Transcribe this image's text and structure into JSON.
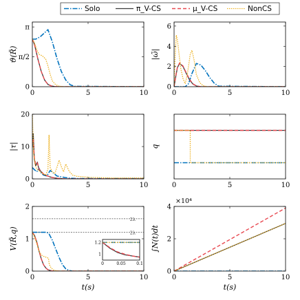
{
  "colors": {
    "solo": "#0072BD",
    "pi_cs": "#3a3a3a",
    "mu_cs": "#E8474F",
    "noncs": "#EDB120",
    "guide": "#888888"
  },
  "legend": [
    {
      "key": "solo",
      "label": "Solo",
      "dash": "7,2,1.5,2"
    },
    {
      "key": "pi_cs",
      "label": "π_V-CS",
      "dash": ""
    },
    {
      "key": "mu_cs",
      "label": "μ_V-CS",
      "dash": "5,3"
    },
    {
      "key": "noncs",
      "label": "NonCS",
      "dash": "1.5,1.5"
    }
  ],
  "chart_data": [
    {
      "id": "theta",
      "type": "line",
      "ylabel": "ϑ(R̃)",
      "xlim": [
        0,
        10
      ],
      "ylim": [
        0,
        3.4
      ],
      "xticks": [
        0,
        5,
        10
      ],
      "xticklabels": [
        "0",
        "5",
        "10"
      ],
      "yticks": [
        0,
        1.5708,
        3.1416
      ],
      "yticklabels": [
        "0",
        "π/2",
        "π"
      ],
      "series": [
        {
          "key": "solo",
          "x": [
            0,
            0.3,
            0.7,
            1.0,
            1.4,
            1.8,
            2.2,
            2.6,
            3.0,
            3.4,
            3.8,
            10
          ],
          "y": [
            2.5,
            2.5,
            2.62,
            2.78,
            3.0,
            2.35,
            1.5,
            0.8,
            0.35,
            0.1,
            0.02,
            0
          ]
        },
        {
          "key": "pi_cs",
          "x": [
            0,
            0.2,
            0.5,
            0.8,
            1.1,
            1.4,
            1.7,
            2.0,
            2.4,
            10
          ],
          "y": [
            2.5,
            2.2,
            1.45,
            0.8,
            0.35,
            0.12,
            0.04,
            0.01,
            0,
            0
          ]
        },
        {
          "key": "mu_cs",
          "x": [
            0,
            0.2,
            0.5,
            0.8,
            1.1,
            1.4,
            1.7,
            2.0,
            2.4,
            10
          ],
          "y": [
            2.5,
            2.2,
            1.45,
            0.8,
            0.35,
            0.12,
            0.04,
            0.01,
            0,
            0
          ]
        },
        {
          "key": "noncs",
          "x": [
            0,
            0.2,
            0.4,
            0.6,
            0.9,
            1.2,
            1.4,
            1.6,
            1.8,
            2.1,
            2.4,
            2.8,
            10
          ],
          "y": [
            2.5,
            2.3,
            1.95,
            1.7,
            1.62,
            1.45,
            1.1,
            0.65,
            0.3,
            0.1,
            0.03,
            0,
            0
          ]
        }
      ]
    },
    {
      "id": "omega",
      "type": "line",
      "ylabel": "|ω̃|",
      "xlim": [
        0,
        10
      ],
      "ylim": [
        0,
        6.4
      ],
      "xticks": [
        0,
        5,
        10
      ],
      "xticklabels": [
        "0",
        "5",
        "10"
      ],
      "yticks": [
        0,
        2,
        4,
        6
      ],
      "yticklabels": [
        "0",
        "2",
        "4",
        "6"
      ],
      "series": [
        {
          "key": "solo",
          "x": [
            0,
            1.0,
            1.3,
            1.6,
            2.0,
            2.4,
            2.8,
            3.2,
            3.6,
            4.0,
            10
          ],
          "y": [
            0,
            0,
            0.3,
            1.3,
            2.3,
            2.15,
            1.6,
            0.9,
            0.35,
            0.05,
            0
          ]
        },
        {
          "key": "pi_cs",
          "x": [
            0,
            0.15,
            0.3,
            0.5,
            0.8,
            1.1,
            1.4,
            1.7,
            2.0,
            2.4,
            10
          ],
          "y": [
            0,
            1.0,
            1.9,
            2.3,
            2.0,
            1.3,
            0.65,
            0.25,
            0.07,
            0,
            0
          ]
        },
        {
          "key": "mu_cs",
          "x": [
            0,
            0.15,
            0.3,
            0.5,
            0.8,
            1.1,
            1.4,
            1.7,
            2.0,
            2.4,
            10
          ],
          "y": [
            0,
            1.05,
            1.95,
            2.35,
            2.05,
            1.35,
            0.7,
            0.28,
            0.08,
            0,
            0
          ]
        },
        {
          "key": "noncs",
          "x": [
            0,
            0.1,
            0.2,
            0.3,
            0.45,
            0.6,
            0.8,
            1.0,
            1.2,
            1.45,
            1.6,
            1.8,
            2.0,
            2.3,
            2.6,
            3.0,
            10
          ],
          "y": [
            0,
            3.2,
            5.1,
            4.6,
            3.2,
            1.8,
            0.8,
            0.3,
            1.3,
            3.2,
            3.6,
            2.6,
            1.2,
            0.4,
            0.1,
            0,
            0
          ]
        }
      ]
    },
    {
      "id": "tau",
      "type": "line",
      "ylabel": "|τ|",
      "xlim": [
        0,
        10
      ],
      "ylim": [
        0,
        20
      ],
      "xticks": [
        0,
        5,
        10
      ],
      "xticklabels": [
        "0",
        "5",
        "10"
      ],
      "yticks": [
        0,
        10,
        20
      ],
      "yticklabels": [
        "0",
        "10",
        "20"
      ],
      "series": [
        {
          "key": "solo",
          "x": [
            0,
            0.2,
            0.4,
            0.6,
            0.8,
            1.0,
            1.3,
            1.6,
            1.9,
            2.2,
            2.6,
            3.0,
            3.5,
            4.0,
            10
          ],
          "y": [
            3.5,
            2.8,
            2.2,
            3.3,
            1.8,
            1.2,
            0.9,
            2.6,
            1.8,
            0.9,
            0.6,
            0.4,
            0.2,
            0.1,
            0.1
          ]
        },
        {
          "key": "pi_cs",
          "x": [
            0,
            0.08,
            0.18,
            0.3,
            0.45,
            0.6,
            0.8,
            1.0,
            1.3,
            1.6,
            2.0,
            2.5,
            3.0,
            10
          ],
          "y": [
            10,
            14,
            6,
            4,
            5.2,
            2.8,
            2.2,
            1.4,
            1.0,
            0.6,
            0.3,
            0.1,
            0,
            0
          ]
        },
        {
          "key": "mu_cs",
          "x": [
            0,
            0.08,
            0.18,
            0.3,
            0.45,
            0.6,
            0.8,
            1.0,
            1.3,
            1.6,
            2.0,
            2.5,
            3.0,
            10
          ],
          "y": [
            11,
            12.5,
            6.5,
            4.5,
            5.0,
            3.0,
            2.4,
            1.5,
            1.0,
            0.6,
            0.3,
            0.1,
            0,
            0
          ]
        },
        {
          "key": "noncs",
          "x": [
            0,
            0.02,
            0.1,
            0.25,
            0.4,
            0.6,
            0.8,
            1.0,
            1.2,
            1.4,
            1.5,
            1.6,
            1.8,
            2.0,
            2.2,
            2.4,
            2.6,
            2.8,
            3.0,
            3.3,
            3.6,
            4.0,
            5.0,
            6.0,
            7.0,
            8.0,
            9.0,
            10
          ],
          "y": [
            20,
            18,
            8,
            4.5,
            3.0,
            2.5,
            2.0,
            1.5,
            1.2,
            3.0,
            13.5,
            3.5,
            2.2,
            1.6,
            3.5,
            5.8,
            3.8,
            2.2,
            4.6,
            2.4,
            1.2,
            0.8,
            0.5,
            0.4,
            0.3,
            0.3,
            0.3,
            0.3
          ]
        }
      ]
    },
    {
      "id": "q",
      "type": "line",
      "ylabel": "q",
      "xlim": [
        0,
        10
      ],
      "ylim": [
        0,
        4
      ],
      "xticks": [
        0,
        5,
        10
      ],
      "xticklabels": [
        "0",
        "5",
        "10"
      ],
      "yticks": [],
      "yticklabels": [],
      "series": [
        {
          "key": "solo",
          "x": [
            0,
            10
          ],
          "y": [
            1,
            1
          ]
        },
        {
          "key": "pi_cs",
          "x": [
            0,
            10
          ],
          "y": [
            3,
            3
          ]
        },
        {
          "key": "mu_cs",
          "x": [
            0,
            10
          ],
          "y": [
            3,
            3
          ]
        },
        {
          "key": "noncs",
          "x": [
            0,
            1.45,
            1.45,
            10
          ],
          "y": [
            3,
            3,
            1,
            1
          ]
        }
      ]
    },
    {
      "id": "V",
      "type": "line",
      "ylabel": "V(R̃,q)",
      "xlabel": "t(s)",
      "xlim": [
        0,
        10
      ],
      "ylim": [
        0,
        2
      ],
      "xticks": [
        0,
        5,
        10
      ],
      "xticklabels": [
        "0",
        "5",
        "10"
      ],
      "yticks": [
        0,
        1,
        2
      ],
      "yticklabels": [
        "0",
        "1",
        "2"
      ],
      "hlines": [
        {
          "y": 1.62,
          "label": "2λ"
        },
        {
          "y": 1.2,
          "label": "2λ"
        }
      ],
      "series": [
        {
          "key": "solo",
          "x": [
            0,
            1.3,
            1.5,
            1.8,
            2.1,
            2.4,
            2.7,
            3.0,
            3.3,
            3.6,
            10
          ],
          "y": [
            1.2,
            1.2,
            1.15,
            0.95,
            0.68,
            0.42,
            0.2,
            0.07,
            0.02,
            0,
            0
          ]
        },
        {
          "key": "pi_cs",
          "x": [
            0,
            0.2,
            0.4,
            0.6,
            0.8,
            1.0,
            1.2,
            1.4,
            1.7,
            2.0,
            10
          ],
          "y": [
            1.2,
            1.1,
            0.9,
            0.62,
            0.38,
            0.2,
            0.1,
            0.04,
            0.01,
            0,
            0
          ]
        },
        {
          "key": "mu_cs",
          "x": [
            0,
            0.2,
            0.4,
            0.6,
            0.8,
            1.0,
            1.2,
            1.4,
            1.7,
            2.0,
            10
          ],
          "y": [
            1.2,
            1.1,
            0.9,
            0.62,
            0.38,
            0.2,
            0.1,
            0.04,
            0.01,
            0,
            0
          ]
        },
        {
          "key": "noncs",
          "x": [
            0,
            0.2,
            0.4,
            0.6,
            0.8,
            1.0,
            1.3,
            1.45,
            1.5,
            1.6,
            1.8,
            2.0,
            2.2,
            2.5,
            10
          ],
          "y": [
            1.2,
            1.05,
            0.85,
            0.62,
            0.5,
            0.46,
            0.42,
            0.4,
            0.25,
            0.14,
            0.06,
            0.02,
            0.01,
            0,
            0
          ]
        }
      ],
      "inset": {
        "xlim": [
          0,
          0.1
        ],
        "ylim": [
          0.9,
          1.25
        ],
        "xticks": [
          0,
          0.05,
          0.1
        ],
        "xticklabels": [
          "0",
          "0.05",
          "0.1"
        ],
        "yticks": [
          1,
          1.2
        ],
        "yticklabels": [
          "1",
          "1.2"
        ],
        "series": [
          {
            "key": "solo",
            "x": [
              0,
              0.1
            ],
            "y": [
              1.2,
              1.2
            ]
          },
          {
            "key": "pi_cs",
            "x": [
              0,
              0.02,
              0.04,
              0.06,
              0.08,
              0.1
            ],
            "y": [
              1.2,
              1.1,
              1.03,
              0.99,
              0.97,
              0.95
            ]
          },
          {
            "key": "mu_cs",
            "x": [
              0,
              0.02,
              0.04,
              0.06,
              0.08,
              0.1
            ],
            "y": [
              1.2,
              1.11,
              1.04,
              1.0,
              0.97,
              0.95
            ]
          },
          {
            "key": "noncs",
            "x": [
              0,
              0.1
            ],
            "y": [
              1.2,
              1.2
            ]
          }
        ]
      }
    },
    {
      "id": "N",
      "type": "line",
      "ylabel": "∫N(t)dt",
      "xlabel": "t(s)",
      "exponent_label": "×10⁴",
      "xlim": [
        0,
        10
      ],
      "ylim": [
        0,
        40000
      ],
      "xticks": [
        0,
        5,
        10
      ],
      "xticklabels": [
        "0",
        "5",
        "10"
      ],
      "yticks": [
        0,
        20000,
        40000
      ],
      "yticklabels": [
        "0",
        "2",
        "4"
      ],
      "series": [
        {
          "key": "solo",
          "x": [
            0,
            10
          ],
          "y": [
            0,
            0
          ]
        },
        {
          "key": "pi_cs",
          "x": [
            0,
            10
          ],
          "y": [
            0,
            29500
          ]
        },
        {
          "key": "mu_cs",
          "x": [
            0,
            10
          ],
          "y": [
            0,
            39000
          ]
        },
        {
          "key": "noncs",
          "x": [
            0,
            10
          ],
          "y": [
            0,
            29500
          ]
        }
      ]
    }
  ]
}
